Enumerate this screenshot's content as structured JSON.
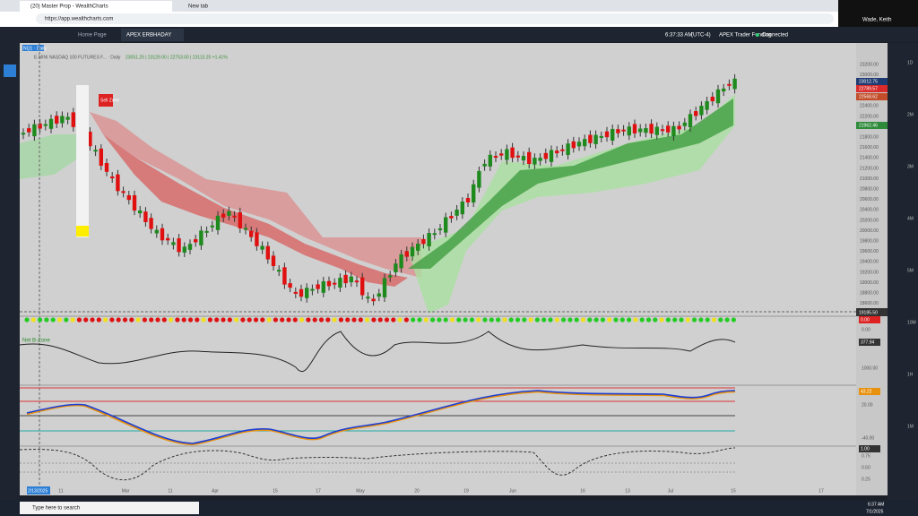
{
  "browser": {
    "tabs": [
      "(20) Master Prop - WealthCharts",
      "New tab"
    ],
    "url": "https://app.wealthcharts.com"
  },
  "overlay": {
    "name": "Wade, Keith"
  },
  "app": {
    "tabs": [
      "Home Page",
      "APEX ERBHADAY"
    ],
    "time": "6:37:33 AM",
    "timezone": "(UTC-4)",
    "account": "APEX Trader Funding",
    "status": "Connected"
  },
  "chart": {
    "symbol_tag": "NQ1 · Daily",
    "title": "E-MINI NASDAQ 100 FUTURES F... · Daily",
    "ohlc": "23051.25 | 23129.00 | 22753.00 | 23113.25 +1.41%",
    "sell_zone": "Sell Zone",
    "price_ticks": [
      "23200.00",
      "23000.00",
      "22800.00",
      "22600.00",
      "22400.00",
      "22200.00",
      "22000.00",
      "21800.00",
      "21600.00",
      "21400.00",
      "21200.00",
      "21000.00",
      "20800.00",
      "20600.00",
      "20400.00",
      "20200.00",
      "20000.00",
      "19800.00",
      "19600.00",
      "19400.00",
      "19200.00",
      "19000.00",
      "18800.00",
      "18600.00"
    ],
    "price_flags": [
      {
        "label": "23012.75",
        "color": "#1f3b73"
      },
      {
        "label": "22789.57",
        "color": "#d92b2b"
      },
      {
        "label": "22568.62",
        "color": "#c24d2a"
      },
      {
        "label": "21962.46",
        "color": "#2e8b3a"
      }
    ],
    "cursor_price": "19185.50",
    "cursor_date": "2/13/2025",
    "dates": [
      "11",
      "Mar",
      "11",
      "Apr",
      "15",
      "17",
      "May",
      "20",
      "19",
      "Jun",
      "16",
      "13",
      "Jul",
      "15",
      "17"
    ],
    "indicator_label": "Net B-Zone",
    "panel_flags": [
      "0.00",
      "377.94",
      "43.22",
      "1.00"
    ],
    "panel_scales": [
      "0.00",
      "1000.00",
      "20.00",
      "-40.00",
      "0.75",
      "0.50",
      "0.25"
    ]
  },
  "side_panel": [
    "1D",
    "2M",
    "3M",
    "4M",
    "5M",
    "10M",
    "1H",
    "1M"
  ],
  "taskbar": {
    "search": "Type here to search",
    "time": "6:37 AM",
    "date": "7/1/2025"
  }
}
